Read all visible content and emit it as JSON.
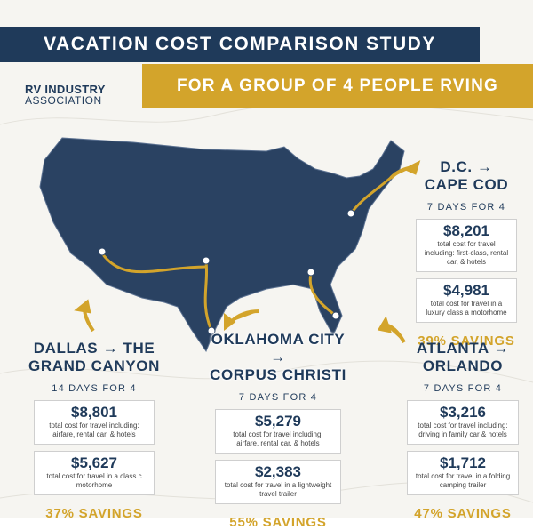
{
  "header": {
    "title": "VACATION COST COMPARISON STUDY",
    "subtitle": "FOR A GROUP OF 4 PEOPLE RVING",
    "logo": [
      "RV INDUSTRY",
      "ASSOCIATION"
    ]
  },
  "trips": [
    {
      "route": [
        "D.C. →",
        "CAPE COD"
      ],
      "duration": "7 DAYS FOR 4",
      "costs": [
        {
          "amount": "$8,201",
          "description": "total cost for travel including: first-class, rental car, & hotels"
        },
        {
          "amount": "$4,981",
          "description": "total cost for travel in a luxury class a motorhome"
        }
      ],
      "savings": "39% SAVINGS"
    },
    {
      "route": [
        "DALLAS → THE",
        "GRAND CANYON"
      ],
      "duration": "14 DAYS FOR 4",
      "costs": [
        {
          "amount": "$8,801",
          "description": "total cost for travel including: airfare, rental car, & hotels"
        },
        {
          "amount": "$5,627",
          "description": "total cost for travel in a class c motorhome"
        }
      ],
      "savings": "37% SAVINGS"
    },
    {
      "route": [
        "OKLAHOMA CITY →",
        "CORPUS CHRISTI"
      ],
      "duration": "7 DAYS FOR 4",
      "costs": [
        {
          "amount": "$5,279",
          "description": "total cost for travel including: airfare, rental car, & hotels"
        },
        {
          "amount": "$2,383",
          "description": "total cost for travel in a lightweight travel trailer"
        }
      ],
      "savings": "55% SAVINGS"
    },
    {
      "route": [
        "ATLANTA →",
        "ORLANDO"
      ],
      "duration": "7 DAYS FOR 4",
      "costs": [
        {
          "amount": "$3,216",
          "description": "total cost for travel including: driving in family car & hotels"
        },
        {
          "amount": "$1,712",
          "description": "total cost for travel in a folding camping trailer"
        }
      ],
      "savings": "47% SAVINGS"
    }
  ]
}
